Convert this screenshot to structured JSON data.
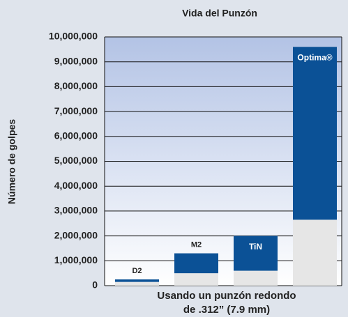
{
  "chart_data": {
    "type": "stacked_bar",
    "title": "Vida del Punzón",
    "ylabel": "Número de golpes",
    "xlabel": [
      "Usando un punzón redondo",
      "de .312” (7.9 mm)"
    ],
    "bar_labels": [
      "D2",
      "M2",
      "TiN",
      "Optima®"
    ],
    "series": [
      {
        "color": "#e6e6e6",
        "values": [
          150000,
          500000,
          600000,
          2650000
        ]
      },
      {
        "color": "#0b5196",
        "values": [
          100000,
          800000,
          1400000,
          6950000
        ]
      }
    ],
    "ylim": [
      0,
      10000000
    ],
    "yticks": [
      0,
      {
        "value": 1000000,
        "label": "1,000,000"
      },
      {
        "value": 2000000,
        "label": "2,000,000"
      },
      {
        "value": 3000000,
        "label": "3,000,000"
      },
      {
        "value": 4000000,
        "label": "4,000,000"
      },
      {
        "value": 5000000,
        "label": "5,000,000"
      },
      {
        "value": 6000000,
        "label": "6,000,000"
      },
      {
        "value": 7000000,
        "label": "7,000,000"
      },
      {
        "value": 8000000,
        "label": "8,000,000"
      },
      {
        "value": 9000000,
        "label": "9,000,000"
      },
      {
        "value": 10000000,
        "label": "10,000,000"
      }
    ],
    "grid": true
  }
}
